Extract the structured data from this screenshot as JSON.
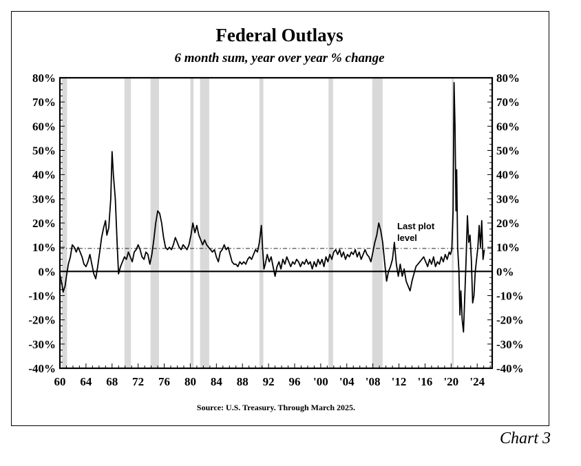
{
  "chart_label": "Chart 3",
  "chart_data": {
    "type": "line",
    "title": "Federal Outlays",
    "subtitle": "6 month sum, year over year % change",
    "source": "Source: U.S. Treasury. Through March 2025.",
    "annotation": {
      "text_lines": [
        "Last plot",
        "level"
      ],
      "reference_value": 9.5
    },
    "y_unit": "%",
    "ylim": [
      -40,
      80
    ],
    "y_ticks": [
      80,
      70,
      60,
      50,
      40,
      30,
      20,
      10,
      0,
      -10,
      -20,
      -30,
      -40
    ],
    "y_tick_labels": [
      "80%",
      "70%",
      "60%",
      "50%",
      "40%",
      "30%",
      "20%",
      "10%",
      "0%",
      "-10%",
      "-20%",
      "-30%",
      "-40%"
    ],
    "xlim": [
      1960,
      2026.3
    ],
    "x_ticks": [
      1960,
      1964,
      1968,
      1972,
      1976,
      1980,
      1984,
      1988,
      1992,
      1996,
      2000,
      2004,
      2008,
      2012,
      2016,
      2020,
      2024
    ],
    "x_tick_labels": [
      "60",
      "64",
      "68",
      "72",
      "76",
      "80",
      "84",
      "88",
      "92",
      "96",
      "'00",
      "'04",
      "'08",
      "'12",
      "'16",
      "'20",
      "'24"
    ],
    "grid": false,
    "legend": "none",
    "recession_color": "#d9d9d9",
    "recessions": [
      [
        1960.3,
        1961.1
      ],
      [
        1969.9,
        1970.9
      ],
      [
        1973.9,
        1975.2
      ],
      [
        1980.0,
        1980.5
      ],
      [
        1981.5,
        1982.9
      ],
      [
        1990.6,
        1991.2
      ],
      [
        2001.2,
        2001.9
      ],
      [
        2007.9,
        2009.5
      ],
      [
        2020.1,
        2020.4
      ]
    ],
    "series": [
      {
        "color": "#000000",
        "points": [
          [
            1960.0,
            -1
          ],
          [
            1960.3,
            -5
          ],
          [
            1960.5,
            -8.5
          ],
          [
            1960.8,
            -6
          ],
          [
            1961.0,
            -2
          ],
          [
            1961.3,
            3
          ],
          [
            1961.6,
            6
          ],
          [
            1961.9,
            11
          ],
          [
            1962.2,
            10
          ],
          [
            1962.5,
            8
          ],
          [
            1962.8,
            10
          ],
          [
            1963.1,
            8
          ],
          [
            1963.4,
            6
          ],
          [
            1963.7,
            3
          ],
          [
            1964.0,
            2
          ],
          [
            1964.3,
            4
          ],
          [
            1964.6,
            7
          ],
          [
            1964.9,
            3
          ],
          [
            1965.2,
            -1
          ],
          [
            1965.5,
            -3
          ],
          [
            1965.8,
            2
          ],
          [
            1966.1,
            8
          ],
          [
            1966.4,
            14
          ],
          [
            1966.7,
            18
          ],
          [
            1967.0,
            21
          ],
          [
            1967.2,
            15
          ],
          [
            1967.5,
            18
          ],
          [
            1967.8,
            30
          ],
          [
            1968.0,
            49.5
          ],
          [
            1968.2,
            40
          ],
          [
            1968.5,
            30
          ],
          [
            1968.8,
            10
          ],
          [
            1969.0,
            -1
          ],
          [
            1969.3,
            2
          ],
          [
            1969.6,
            4
          ],
          [
            1969.9,
            6
          ],
          [
            1970.2,
            5
          ],
          [
            1970.5,
            8
          ],
          [
            1970.8,
            6
          ],
          [
            1971.1,
            4
          ],
          [
            1971.4,
            8
          ],
          [
            1971.7,
            9
          ],
          [
            1972.0,
            11
          ],
          [
            1972.3,
            9
          ],
          [
            1972.6,
            6
          ],
          [
            1972.9,
            5
          ],
          [
            1973.2,
            8
          ],
          [
            1973.5,
            7
          ],
          [
            1973.8,
            3
          ],
          [
            1974.1,
            7
          ],
          [
            1974.4,
            13
          ],
          [
            1974.7,
            20
          ],
          [
            1975.0,
            25
          ],
          [
            1975.3,
            24
          ],
          [
            1975.6,
            20
          ],
          [
            1975.9,
            14
          ],
          [
            1976.2,
            10
          ],
          [
            1976.5,
            9
          ],
          [
            1976.8,
            10
          ],
          [
            1977.1,
            9
          ],
          [
            1977.4,
            11
          ],
          [
            1977.7,
            14
          ],
          [
            1978.0,
            12
          ],
          [
            1978.3,
            10
          ],
          [
            1978.6,
            9
          ],
          [
            1978.9,
            11
          ],
          [
            1979.2,
            10
          ],
          [
            1979.5,
            9
          ],
          [
            1979.8,
            11
          ],
          [
            1980.1,
            15
          ],
          [
            1980.4,
            20
          ],
          [
            1980.7,
            16
          ],
          [
            1981.0,
            19
          ],
          [
            1981.3,
            15
          ],
          [
            1981.6,
            13
          ],
          [
            1981.9,
            11
          ],
          [
            1982.2,
            13
          ],
          [
            1982.5,
            11
          ],
          [
            1982.8,
            10
          ],
          [
            1983.1,
            9
          ],
          [
            1983.4,
            8
          ],
          [
            1983.7,
            9
          ],
          [
            1984.0,
            6
          ],
          [
            1984.3,
            4
          ],
          [
            1984.6,
            8
          ],
          [
            1984.9,
            9
          ],
          [
            1985.2,
            11
          ],
          [
            1985.5,
            9
          ],
          [
            1985.8,
            10
          ],
          [
            1986.1,
            7
          ],
          [
            1986.4,
            4
          ],
          [
            1986.7,
            3
          ],
          [
            1987.0,
            3
          ],
          [
            1987.3,
            2
          ],
          [
            1987.6,
            4
          ],
          [
            1987.9,
            3
          ],
          [
            1988.2,
            4
          ],
          [
            1988.5,
            3
          ],
          [
            1988.8,
            5
          ],
          [
            1989.1,
            6
          ],
          [
            1989.4,
            5
          ],
          [
            1989.7,
            7
          ],
          [
            1990.0,
            9
          ],
          [
            1990.3,
            8
          ],
          [
            1990.6,
            12
          ],
          [
            1990.9,
            19
          ],
          [
            1991.1,
            9
          ],
          [
            1991.3,
            1
          ],
          [
            1991.5,
            3
          ],
          [
            1991.8,
            7
          ],
          [
            1992.1,
            4
          ],
          [
            1992.4,
            6
          ],
          [
            1992.7,
            2
          ],
          [
            1993.0,
            -2
          ],
          [
            1993.3,
            2
          ],
          [
            1993.6,
            4
          ],
          [
            1993.9,
            1
          ],
          [
            1994.2,
            5
          ],
          [
            1994.5,
            3
          ],
          [
            1994.8,
            6
          ],
          [
            1995.1,
            4
          ],
          [
            1995.4,
            2
          ],
          [
            1995.7,
            4
          ],
          [
            1996.0,
            3
          ],
          [
            1996.3,
            5
          ],
          [
            1996.6,
            4
          ],
          [
            1996.9,
            2
          ],
          [
            1997.2,
            4
          ],
          [
            1997.5,
            3
          ],
          [
            1997.8,
            5
          ],
          [
            1998.1,
            3
          ],
          [
            1998.4,
            4
          ],
          [
            1998.7,
            1
          ],
          [
            1999.0,
            4
          ],
          [
            1999.3,
            2
          ],
          [
            1999.6,
            5
          ],
          [
            1999.9,
            3
          ],
          [
            2000.2,
            5
          ],
          [
            2000.5,
            2
          ],
          [
            2000.8,
            6
          ],
          [
            2001.1,
            4
          ],
          [
            2001.4,
            7
          ],
          [
            2001.7,
            5
          ],
          [
            2002.0,
            8
          ],
          [
            2002.3,
            9
          ],
          [
            2002.6,
            7
          ],
          [
            2002.9,
            9
          ],
          [
            2003.2,
            6
          ],
          [
            2003.5,
            8
          ],
          [
            2003.8,
            5
          ],
          [
            2004.1,
            7
          ],
          [
            2004.4,
            6
          ],
          [
            2004.7,
            8
          ],
          [
            2005.0,
            7
          ],
          [
            2005.3,
            9
          ],
          [
            2005.6,
            6
          ],
          [
            2005.9,
            8
          ],
          [
            2006.2,
            5
          ],
          [
            2006.5,
            7
          ],
          [
            2006.8,
            9
          ],
          [
            2007.1,
            7
          ],
          [
            2007.4,
            6
          ],
          [
            2007.7,
            4
          ],
          [
            2008.0,
            8
          ],
          [
            2008.3,
            12
          ],
          [
            2008.6,
            15
          ],
          [
            2008.9,
            20
          ],
          [
            2009.2,
            17
          ],
          [
            2009.5,
            12
          ],
          [
            2009.8,
            4
          ],
          [
            2010.1,
            -4
          ],
          [
            2010.4,
            0
          ],
          [
            2010.7,
            2
          ],
          [
            2011.0,
            5
          ],
          [
            2011.3,
            12
          ],
          [
            2011.6,
            3
          ],
          [
            2011.9,
            -2
          ],
          [
            2012.2,
            3
          ],
          [
            2012.5,
            -2
          ],
          [
            2012.8,
            1
          ],
          [
            2013.1,
            -4
          ],
          [
            2013.4,
            -6
          ],
          [
            2013.7,
            -8
          ],
          [
            2014.0,
            -4
          ],
          [
            2014.3,
            -1
          ],
          [
            2014.6,
            2
          ],
          [
            2014.9,
            3
          ],
          [
            2015.2,
            4
          ],
          [
            2015.5,
            5
          ],
          [
            2015.8,
            6
          ],
          [
            2016.1,
            4
          ],
          [
            2016.4,
            2
          ],
          [
            2016.7,
            5
          ],
          [
            2017.0,
            3
          ],
          [
            2017.3,
            6
          ],
          [
            2017.6,
            2
          ],
          [
            2017.9,
            4
          ],
          [
            2018.2,
            3
          ],
          [
            2018.5,
            6
          ],
          [
            2018.8,
            4
          ],
          [
            2019.1,
            7
          ],
          [
            2019.4,
            5
          ],
          [
            2019.7,
            8
          ],
          [
            2019.9,
            7
          ],
          [
            2020.1,
            9
          ],
          [
            2020.3,
            25
          ],
          [
            2020.45,
            78
          ],
          [
            2020.6,
            60
          ],
          [
            2020.75,
            25
          ],
          [
            2020.85,
            42
          ],
          [
            2021.0,
            10
          ],
          [
            2021.2,
            0
          ],
          [
            2021.35,
            -18
          ],
          [
            2021.5,
            -8
          ],
          [
            2021.7,
            -20
          ],
          [
            2021.9,
            -25
          ],
          [
            2022.1,
            -10
          ],
          [
            2022.3,
            5
          ],
          [
            2022.5,
            23
          ],
          [
            2022.7,
            12
          ],
          [
            2022.9,
            15
          ],
          [
            2023.1,
            5
          ],
          [
            2023.3,
            -13
          ],
          [
            2023.5,
            -10
          ],
          [
            2023.7,
            0
          ],
          [
            2023.9,
            5
          ],
          [
            2024.1,
            10
          ],
          [
            2024.3,
            19
          ],
          [
            2024.5,
            10
          ],
          [
            2024.7,
            21
          ],
          [
            2024.9,
            5
          ],
          [
            2025.1,
            9
          ]
        ]
      }
    ]
  }
}
